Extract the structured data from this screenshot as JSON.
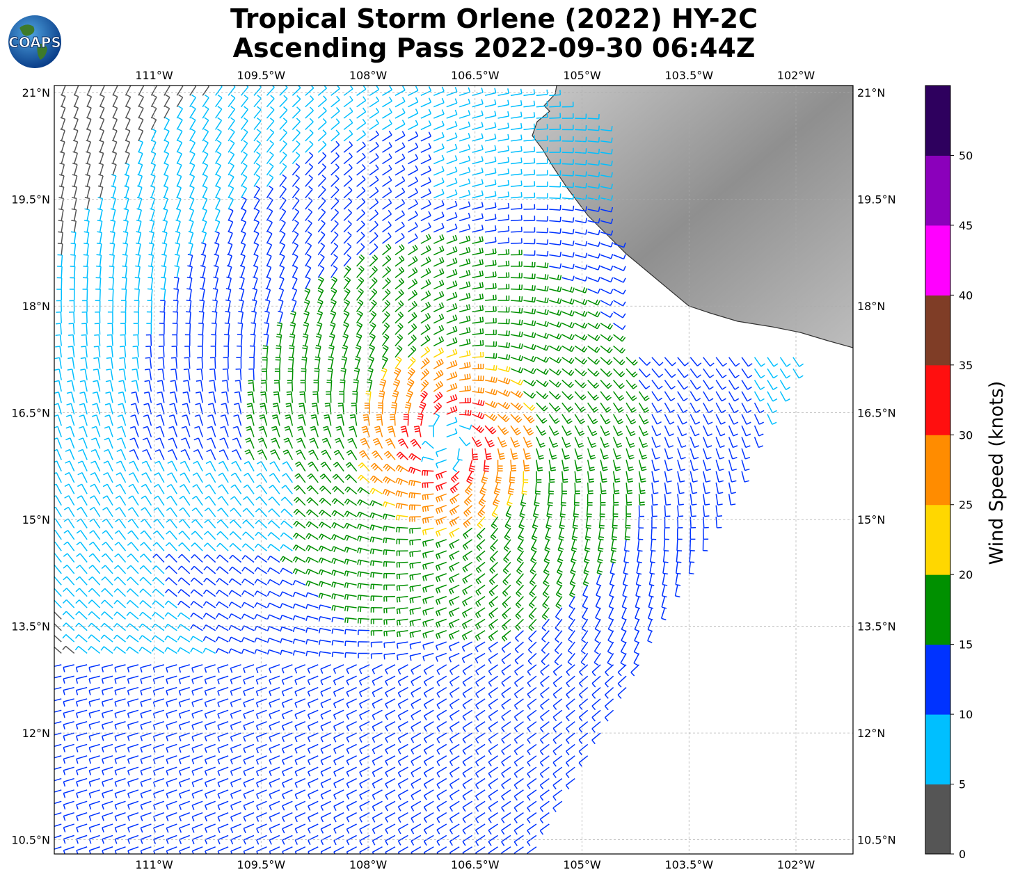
{
  "title": {
    "line1": "Tropical Storm Orlene (2022) HY-2C",
    "line2": "Ascending Pass 2022-09-30 06:44Z"
  },
  "logo": {
    "text": "COAPS",
    "icon": "globe-logo-icon"
  },
  "map": {
    "lon_ticks": [
      "111°W",
      "109.5°W",
      "108°W",
      "106.5°W",
      "105°W",
      "103.5°W",
      "102°W"
    ],
    "lat_ticks": [
      "21°N",
      "19.5°N",
      "18°N",
      "16.5°N",
      "15°N",
      "13.5°N",
      "12°N",
      "10.5°N"
    ],
    "lon_values": [
      -111,
      -109.5,
      -108,
      -106.5,
      -105,
      -103.5,
      -102
    ],
    "lat_values": [
      21,
      19.5,
      18,
      16.5,
      15,
      13.5,
      12,
      10.5
    ],
    "extent": {
      "lon_min": -112.4,
      "lon_max": -101.2,
      "lat_min": 10.3,
      "lat_max": 21.1
    },
    "storm_center": {
      "lon": -106.9,
      "lat": 16.1
    },
    "land_color": "#9a9a9a",
    "grid": true
  },
  "colorbar": {
    "label": "Wind Speed (knots)",
    "ticks": [
      "0",
      "5",
      "10",
      "15",
      "20",
      "25",
      "30",
      "35",
      "40",
      "45",
      "50"
    ],
    "bins": [
      {
        "min": 0,
        "max": 5,
        "color": "#555555"
      },
      {
        "min": 5,
        "max": 10,
        "color": "#00bfff"
      },
      {
        "min": 10,
        "max": 15,
        "color": "#0033ff"
      },
      {
        "min": 15,
        "max": 20,
        "color": "#009000"
      },
      {
        "min": 20,
        "max": 25,
        "color": "#ffd700"
      },
      {
        "min": 25,
        "max": 30,
        "color": "#ff8c00"
      },
      {
        "min": 30,
        "max": 35,
        "color": "#ff0f0f"
      },
      {
        "min": 35,
        "max": 40,
        "color": "#7f3d26"
      },
      {
        "min": 40,
        "max": 45,
        "color": "#ff00ff"
      },
      {
        "min": 45,
        "max": 50,
        "color": "#8b00bb"
      },
      {
        "min": 50,
        "max": 55,
        "color": "#2e005e"
      }
    ]
  }
}
